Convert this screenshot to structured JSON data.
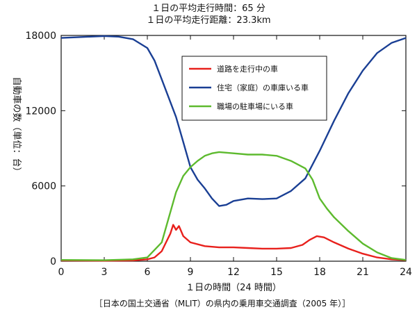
{
  "header": {
    "line1": "１日の平均走行時間：65 分",
    "line2": "１日の平均走行距離：23.3km"
  },
  "source_note": "［日本の国土交通省（MLIT）の県内の乗用車交通調査（2005 年）］",
  "chart_data": {
    "type": "line",
    "xlabel": "１日の時間（24 時間）",
    "ylabel": "自動車の数（単位：台）",
    "xlim": [
      0,
      24
    ],
    "ylim": [
      0,
      18000
    ],
    "x_ticks": [
      0,
      3,
      6,
      9,
      12,
      15,
      18,
      21,
      24
    ],
    "y_ticks": [
      0,
      6000,
      12000,
      18000
    ],
    "grid": false,
    "legend_position": "top-right",
    "series": [
      {
        "name": "道路を走行中の車",
        "color": "#e8201c",
        "points": [
          [
            0,
            60
          ],
          [
            3,
            40
          ],
          [
            5,
            60
          ],
          [
            6,
            150
          ],
          [
            6.5,
            300
          ],
          [
            7,
            800
          ],
          [
            7.3,
            1500
          ],
          [
            7.6,
            2200
          ],
          [
            7.8,
            2900
          ],
          [
            8.0,
            2500
          ],
          [
            8.2,
            2800
          ],
          [
            8.5,
            2000
          ],
          [
            9,
            1500
          ],
          [
            10,
            1200
          ],
          [
            11,
            1100
          ],
          [
            12,
            1100
          ],
          [
            13,
            1050
          ],
          [
            14,
            1000
          ],
          [
            15,
            1000
          ],
          [
            16,
            1050
          ],
          [
            16.8,
            1300
          ],
          [
            17.3,
            1700
          ],
          [
            17.8,
            2000
          ],
          [
            18.3,
            1900
          ],
          [
            19,
            1500
          ],
          [
            20,
            1000
          ],
          [
            21,
            600
          ],
          [
            22,
            300
          ],
          [
            23,
            150
          ],
          [
            24,
            80
          ]
        ]
      },
      {
        "name": "住宅（家庭）の車庫いる車",
        "color": "#1a3f94",
        "points": [
          [
            0,
            17800
          ],
          [
            1,
            17850
          ],
          [
            2,
            17900
          ],
          [
            3,
            17950
          ],
          [
            4,
            17900
          ],
          [
            5,
            17700
          ],
          [
            6,
            17000
          ],
          [
            6.5,
            16000
          ],
          [
            7,
            14500
          ],
          [
            7.5,
            13000
          ],
          [
            8,
            11500
          ],
          [
            8.5,
            9500
          ],
          [
            9,
            7500
          ],
          [
            9.5,
            6500
          ],
          [
            10,
            5800
          ],
          [
            10.5,
            5000
          ],
          [
            11,
            4400
          ],
          [
            11.5,
            4500
          ],
          [
            12,
            4800
          ],
          [
            13,
            5000
          ],
          [
            14,
            4950
          ],
          [
            15,
            5000
          ],
          [
            16,
            5600
          ],
          [
            17,
            6600
          ],
          [
            18,
            8800
          ],
          [
            19,
            11200
          ],
          [
            20,
            13400
          ],
          [
            21,
            15200
          ],
          [
            22,
            16600
          ],
          [
            23,
            17400
          ],
          [
            24,
            17800
          ]
        ]
      },
      {
        "name": "職場の駐車場にいる車",
        "color": "#5dba2e",
        "points": [
          [
            0,
            100
          ],
          [
            3,
            80
          ],
          [
            5,
            150
          ],
          [
            6,
            300
          ],
          [
            7,
            1500
          ],
          [
            7.5,
            3500
          ],
          [
            8,
            5500
          ],
          [
            8.5,
            6800
          ],
          [
            9,
            7500
          ],
          [
            9.5,
            8000
          ],
          [
            10,
            8400
          ],
          [
            10.5,
            8600
          ],
          [
            11,
            8700
          ],
          [
            12,
            8600
          ],
          [
            13,
            8500
          ],
          [
            14,
            8500
          ],
          [
            15,
            8400
          ],
          [
            16,
            8000
          ],
          [
            17,
            7400
          ],
          [
            17.5,
            6500
          ],
          [
            18,
            5000
          ],
          [
            18.5,
            4200
          ],
          [
            19,
            3500
          ],
          [
            20,
            2400
          ],
          [
            21,
            1400
          ],
          [
            22,
            700
          ],
          [
            23,
            250
          ],
          [
            24,
            100
          ]
        ]
      }
    ]
  }
}
